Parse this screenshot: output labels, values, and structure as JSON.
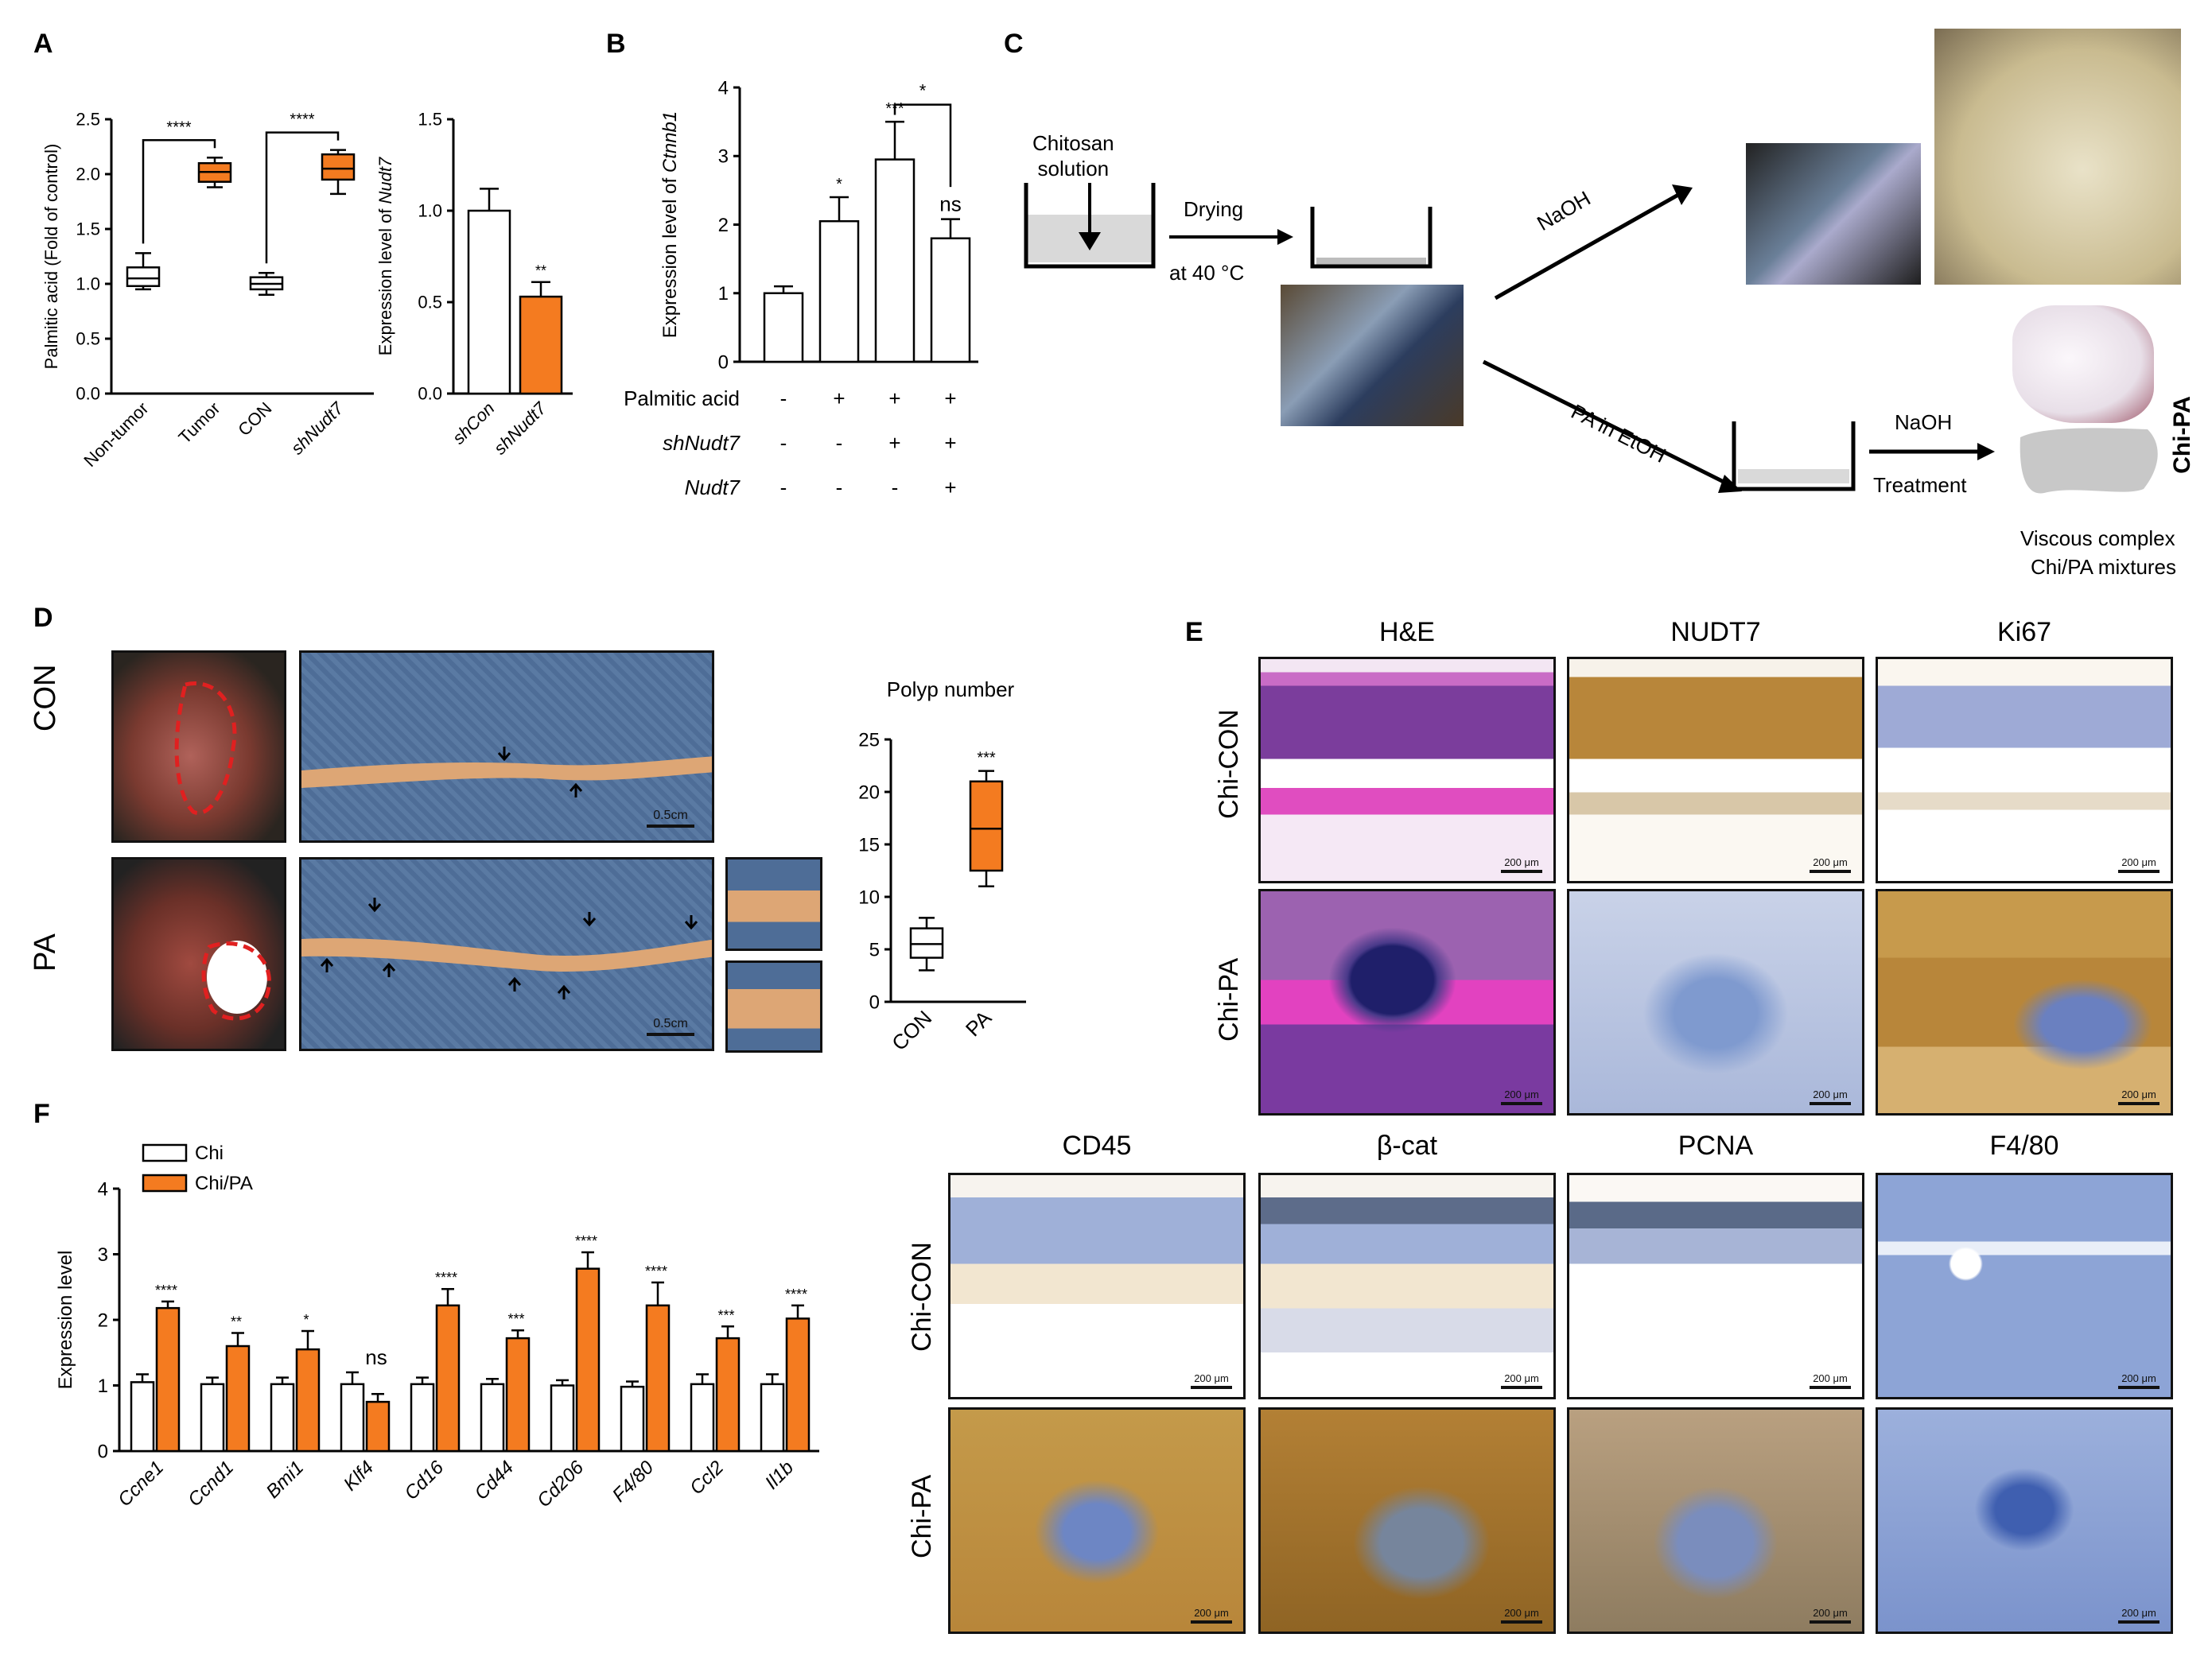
{
  "panels": {
    "A": "A",
    "B": "B",
    "C": "C",
    "D": "D",
    "E": "E",
    "F": "F"
  },
  "colors": {
    "orange": "#f47b20",
    "white": "#ffffff",
    "black": "#000000",
    "he_pink": "#d04fb0",
    "he_purple": "#7a3aa0",
    "ihc_brown": "#b8863a",
    "ihc_blue": "#8aa0d0"
  },
  "chart_data": [
    {
      "id": "A1",
      "type": "box",
      "ylabel": "Palmitic acid (Fold of control)",
      "ylim": [
        0,
        2.5
      ],
      "yticks": [
        "0.0",
        "0.5",
        "1.0",
        "1.5",
        "2.0",
        "2.5"
      ],
      "categories": [
        "Non-tumor",
        "Tumor",
        "CON",
        "shNudt7"
      ],
      "boxes": [
        {
          "min": 0.95,
          "q1": 0.98,
          "median": 1.05,
          "q3": 1.15,
          "max": 1.28,
          "fill": "#ffffff"
        },
        {
          "min": 1.88,
          "q1": 1.93,
          "median": 2.02,
          "q3": 2.1,
          "max": 2.15,
          "fill": "#f47b20"
        },
        {
          "min": 0.9,
          "q1": 0.95,
          "median": 1.0,
          "q3": 1.06,
          "max": 1.1,
          "fill": "#ffffff"
        },
        {
          "min": 1.82,
          "q1": 1.95,
          "median": 2.05,
          "q3": 2.18,
          "max": 2.22,
          "fill": "#f47b20"
        }
      ],
      "significance": [
        {
          "from": 0,
          "to": 1,
          "label": "****"
        },
        {
          "from": 2,
          "to": 3,
          "label": "****"
        }
      ]
    },
    {
      "id": "A2",
      "type": "bar",
      "ylabel": "Expression level of Nudt7",
      "ylim": [
        0,
        1.5
      ],
      "yticks": [
        "0.0",
        "0.5",
        "1.0",
        "1.5"
      ],
      "categories": [
        "shCon",
        "shNudt7"
      ],
      "values": [
        1.0,
        0.53
      ],
      "errors": [
        0.12,
        0.08
      ],
      "fills": [
        "#ffffff",
        "#f47b20"
      ],
      "annotations": [
        "",
        "**"
      ]
    },
    {
      "id": "B",
      "type": "bar",
      "ylabel": "Expression level of Ctnnb1",
      "ylim": [
        0,
        4
      ],
      "yticks": [
        "0",
        "1",
        "2",
        "3",
        "4"
      ],
      "values": [
        1.0,
        2.05,
        2.95,
        1.8
      ],
      "errors": [
        0.1,
        0.35,
        0.55,
        0.28
      ],
      "annotations": [
        "",
        "*",
        "***",
        "ns"
      ],
      "bracket": {
        "from": 2,
        "to": 3,
        "label": "*"
      },
      "row_labels": [
        "Palmitic acid",
        "shNudt7",
        "Nudt7"
      ],
      "rows": [
        [
          "-",
          "+",
          "+",
          "+"
        ],
        [
          "-",
          "-",
          "+",
          "+"
        ],
        [
          "-",
          "-",
          "-",
          "+"
        ]
      ]
    },
    {
      "id": "D",
      "type": "box",
      "title": "Polyp number",
      "ylim": [
        0,
        25
      ],
      "yticks": [
        "0",
        "5",
        "10",
        "15",
        "20",
        "25"
      ],
      "categories": [
        "CON",
        "PA"
      ],
      "boxes": [
        {
          "min": 3.0,
          "q1": 4.2,
          "median": 5.5,
          "q3": 7.0,
          "max": 8.0,
          "fill": "#ffffff"
        },
        {
          "min": 11.0,
          "q1": 12.5,
          "median": 16.5,
          "q3": 21.0,
          "max": 22.0,
          "fill": "#f47b20"
        }
      ],
      "annotations": [
        "",
        "***"
      ]
    },
    {
      "id": "F",
      "type": "bar",
      "ylabel": "Expression level",
      "ylim": [
        0,
        4
      ],
      "yticks": [
        "0",
        "1",
        "2",
        "3",
        "4"
      ],
      "categories": [
        "Ccne1",
        "Ccnd1",
        "Bmi1",
        "Klf4",
        "Cd16",
        "Cd44",
        "Cd206",
        "F4/80",
        "Ccl2",
        "Il1b"
      ],
      "series": [
        {
          "name": "Chi",
          "fill": "#ffffff",
          "values": [
            1.05,
            1.02,
            1.02,
            1.02,
            1.02,
            1.02,
            1.0,
            0.98,
            1.02,
            1.02
          ],
          "errors": [
            0.12,
            0.1,
            0.1,
            0.18,
            0.1,
            0.08,
            0.08,
            0.08,
            0.15,
            0.15
          ]
        },
        {
          "name": "Chi/PA",
          "fill": "#f47b20",
          "values": [
            2.18,
            1.6,
            1.55,
            0.75,
            2.22,
            1.72,
            2.78,
            2.22,
            1.72,
            2.02
          ],
          "errors": [
            0.1,
            0.2,
            0.28,
            0.12,
            0.25,
            0.12,
            0.25,
            0.35,
            0.18,
            0.2
          ]
        }
      ],
      "annotations": [
        "****",
        "**",
        "*",
        "ns",
        "****",
        "***",
        "****",
        "****",
        "***",
        "****"
      ]
    }
  ],
  "panelC": {
    "chitosan": "Chitosan\nsolution",
    "drying": "Drying",
    "temp": "at 40 °C",
    "naoh": "NaOH",
    "pa_etoh": "PA in EtOH",
    "naoh2": "NaOH",
    "treatment": "Treatment",
    "chipa": "Chi-PA",
    "viscous1": "Viscous complex",
    "viscous2": "Chi/PA mixtures"
  },
  "panelD": {
    "con": "CON",
    "pa": "PA",
    "scale": "0.5cm"
  },
  "panelE": {
    "top_cols": [
      "H&E",
      "NUDT7",
      "Ki67"
    ],
    "bottom_cols": [
      "CD45",
      "β-cat",
      "PCNA",
      "F4/80"
    ],
    "rows": [
      "Chi-CON",
      "Chi-PA"
    ],
    "scale": "200 μm"
  }
}
